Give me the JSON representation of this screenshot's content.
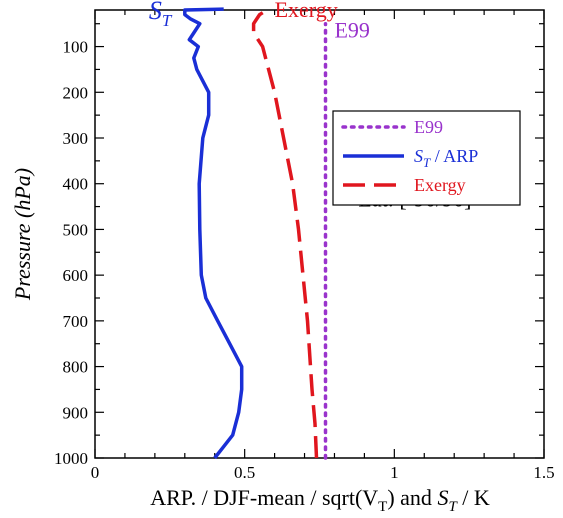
{
  "chart_data": {
    "type": "line",
    "title": "",
    "xlabel": "ARP. / DJF-mean / sqrt(V_T) and S_T / K",
    "ylabel": "Pressure (hPa)",
    "xlim": [
      0,
      1.5
    ],
    "ylim": [
      1000,
      20
    ],
    "x_ticks": [
      0,
      0.5,
      1,
      1.5
    ],
    "x_tick_labels": [
      "0",
      "0.5",
      "1",
      "1.5"
    ],
    "y_ticks": [
      100,
      200,
      300,
      400,
      500,
      600,
      700,
      800,
      900,
      1000
    ],
    "y_tick_labels": [
      "100",
      "200",
      "300",
      "400",
      "500",
      "600",
      "700",
      "800",
      "900",
      "1000"
    ],
    "grid": false,
    "legend_position": "center-right",
    "series": [
      {
        "name": "E99",
        "color": "#9933cc",
        "style": "dotted",
        "points": [
          [
            0.77,
            1000
          ],
          [
            0.77,
            925
          ],
          [
            0.77,
            850
          ],
          [
            0.77,
            700
          ],
          [
            0.77,
            500
          ],
          [
            0.77,
            300
          ],
          [
            0.77,
            200
          ],
          [
            0.77,
            100
          ],
          [
            0.77,
            50
          ]
        ]
      },
      {
        "name": "S_T / ARP",
        "color": "#1a2fd6",
        "style": "solid",
        "points": [
          [
            0.4,
            1000
          ],
          [
            0.43,
            975
          ],
          [
            0.46,
            950
          ],
          [
            0.48,
            900
          ],
          [
            0.49,
            850
          ],
          [
            0.49,
            800
          ],
          [
            0.45,
            750
          ],
          [
            0.41,
            700
          ],
          [
            0.37,
            650
          ],
          [
            0.355,
            600
          ],
          [
            0.35,
            500
          ],
          [
            0.348,
            400
          ],
          [
            0.36,
            300
          ],
          [
            0.38,
            250
          ],
          [
            0.38,
            200
          ],
          [
            0.34,
            150
          ],
          [
            0.33,
            125
          ],
          [
            0.345,
            100
          ],
          [
            0.315,
            85
          ],
          [
            0.33,
            70
          ],
          [
            0.35,
            50
          ],
          [
            0.32,
            40
          ],
          [
            0.3,
            30
          ],
          [
            0.3,
            20
          ],
          [
            0.43,
            18
          ]
        ]
      },
      {
        "name": "Exergy",
        "color": "#e0161e",
        "style": "dashed",
        "points": [
          [
            0.74,
            1000
          ],
          [
            0.735,
            925
          ],
          [
            0.725,
            850
          ],
          [
            0.71,
            700
          ],
          [
            0.68,
            500
          ],
          [
            0.66,
            400
          ],
          [
            0.63,
            300
          ],
          [
            0.6,
            200
          ],
          [
            0.56,
            100
          ],
          [
            0.53,
            70
          ],
          [
            0.53,
            50
          ],
          [
            0.55,
            30
          ],
          [
            0.58,
            18
          ]
        ]
      }
    ],
    "annotations": [
      {
        "text": "E99",
        "x": 0.8,
        "y": 80,
        "color": "#9933cc"
      },
      {
        "text": "Exergy",
        "x": 0.6,
        "y": 35,
        "color": "#e0161e"
      },
      {
        "text": "S_T",
        "x": 0.18,
        "y": 40,
        "color": "#1a2fd6"
      },
      {
        "text": "Lat: [-90/90]",
        "x": 0.88,
        "y": 450,
        "color": "#000000"
      }
    ],
    "legend": [
      {
        "label": "E99",
        "color": "#9933cc",
        "style": "dotted"
      },
      {
        "label": "S_T / ARP",
        "color": "#1a2fd6",
        "style": "solid"
      },
      {
        "label": "Exergy",
        "color": "#e0161e",
        "style": "dashed"
      }
    ]
  }
}
